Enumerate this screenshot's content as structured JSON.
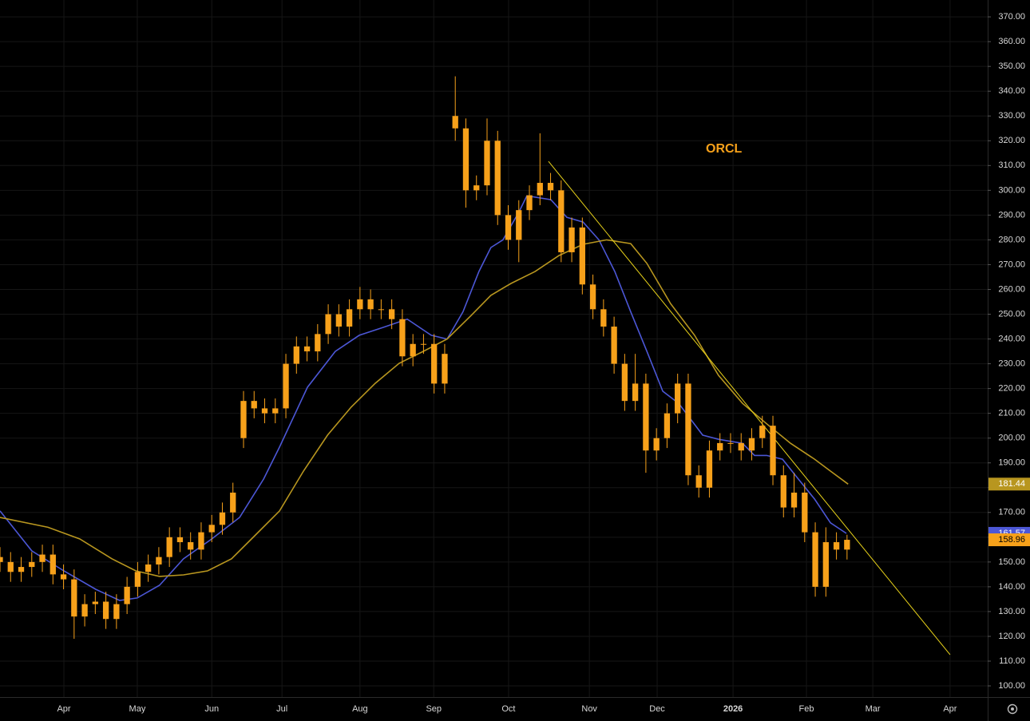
{
  "chart_data": {
    "type": "candlestick",
    "annotation": "ORCL",
    "grid": true,
    "xlim": [
      0,
      279.4
    ],
    "ylim": [
      95.5,
      376.8
    ],
    "xticks": [
      {
        "value": 18.1,
        "label": "Apr"
      },
      {
        "value": 38.9,
        "label": "May"
      },
      {
        "value": 60,
        "label": "Jun"
      },
      {
        "value": 79.9,
        "label": "Jul"
      },
      {
        "value": 102,
        "label": "Aug"
      },
      {
        "value": 122.9,
        "label": "Sep"
      },
      {
        "value": 144.1,
        "label": "Oct"
      },
      {
        "value": 167,
        "label": "Nov"
      },
      {
        "value": 186.2,
        "label": "Dec"
      },
      {
        "value": 207.7,
        "label": "2026"
      },
      {
        "value": 228.5,
        "label": "Feb"
      },
      {
        "value": 247.3,
        "label": "Mar"
      },
      {
        "value": 269.2,
        "label": "Apr"
      }
    ],
    "yticks": [
      {
        "value": 100,
        "label": "100.00"
      },
      {
        "value": 110,
        "label": "110.00"
      },
      {
        "value": 120,
        "label": "120.00"
      },
      {
        "value": 130,
        "label": "130.00"
      },
      {
        "value": 140,
        "label": "140.00"
      },
      {
        "value": 150,
        "label": "150.00"
      },
      {
        "value": 160,
        "label": "160.00"
      },
      {
        "value": 170,
        "label": "170.00"
      },
      {
        "value": 180,
        "label": "180.00"
      },
      {
        "value": 190,
        "label": "190.00"
      },
      {
        "value": 200,
        "label": "200.00"
      },
      {
        "value": 210,
        "label": "210.00"
      },
      {
        "value": 220,
        "label": "220.00"
      },
      {
        "value": 230,
        "label": "230.00"
      },
      {
        "value": 240,
        "label": "240.00"
      },
      {
        "value": 250,
        "label": "250.00"
      },
      {
        "value": 260,
        "label": "260.00"
      },
      {
        "value": 270,
        "label": "270.00"
      },
      {
        "value": 280,
        "label": "280.00"
      },
      {
        "value": 290,
        "label": "290.00"
      },
      {
        "value": 300,
        "label": "300.00"
      },
      {
        "value": 310,
        "label": "310.00"
      },
      {
        "value": 320,
        "label": "320.00"
      },
      {
        "value": 330,
        "label": "330.00"
      },
      {
        "value": 340,
        "label": "340.00"
      },
      {
        "value": 350,
        "label": "350.00"
      },
      {
        "value": 360,
        "label": "360.00"
      },
      {
        "value": 370,
        "label": "370.00"
      }
    ],
    "candles": {
      "color": "#f7a11a",
      "x": [
        0,
        3,
        6,
        9,
        12,
        15,
        18,
        21,
        24,
        27,
        30,
        33,
        36,
        39,
        42,
        45,
        48,
        51,
        54,
        57,
        60,
        63,
        66,
        69,
        72,
        75,
        78,
        81,
        84,
        87,
        90,
        93,
        96,
        99,
        102,
        105,
        108,
        111,
        114,
        117,
        120,
        123,
        126,
        129,
        132,
        135,
        138,
        141,
        144,
        147,
        150,
        153,
        156,
        159,
        162,
        165,
        168,
        171,
        174,
        177,
        180,
        183,
        186,
        189,
        192,
        195,
        198,
        201,
        204,
        207,
        210,
        213,
        216,
        219,
        222,
        225,
        228,
        231,
        234,
        237,
        240
      ],
      "open": [
        152,
        150,
        146,
        148,
        150,
        153,
        145,
        143,
        128,
        133,
        134,
        127,
        133,
        140,
        146,
        149,
        152,
        160,
        158,
        155,
        162,
        165,
        170,
        200,
        215,
        212,
        210,
        212,
        230,
        237,
        235,
        242,
        250,
        245,
        252,
        256,
        252,
        252,
        248,
        233,
        238,
        238,
        222,
        330,
        325,
        300,
        302,
        320,
        290,
        280,
        292,
        298,
        303,
        300,
        275,
        285,
        262,
        252,
        245,
        230,
        215,
        222,
        195,
        200,
        210,
        222,
        185,
        180,
        195,
        198,
        198,
        195,
        200,
        205,
        185,
        172,
        178,
        162,
        140,
        158,
        155
      ],
      "high": [
        156,
        154,
        152,
        154,
        157,
        157,
        149,
        147,
        137,
        138,
        138,
        137,
        144,
        150,
        153,
        156,
        164,
        164,
        162,
        166,
        169,
        174,
        182,
        219,
        219,
        216,
        216,
        234,
        241,
        241,
        246,
        254,
        254,
        256,
        261,
        260,
        256,
        256,
        252,
        242,
        242,
        242,
        238,
        346,
        329,
        306,
        329,
        324,
        294,
        296,
        302,
        323,
        307,
        304,
        289,
        289,
        266,
        256,
        249,
        234,
        234,
        226,
        204,
        214,
        226,
        226,
        189,
        199,
        202,
        202,
        202,
        204,
        209,
        209,
        189,
        186,
        182,
        166,
        164,
        162,
        161
      ],
      "low": [
        146,
        142,
        142,
        144,
        146,
        141,
        139,
        119,
        124,
        129,
        123,
        123,
        129,
        136,
        142,
        145,
        148,
        154,
        151,
        151,
        158,
        161,
        166,
        196,
        208,
        206,
        206,
        208,
        226,
        231,
        231,
        238,
        241,
        241,
        248,
        248,
        248,
        244,
        229,
        229,
        234,
        218,
        218,
        320,
        293,
        296,
        298,
        286,
        276,
        271,
        288,
        294,
        296,
        271,
        271,
        258,
        248,
        241,
        226,
        211,
        211,
        186,
        191,
        196,
        206,
        181,
        176,
        176,
        191,
        194,
        191,
        191,
        196,
        181,
        168,
        168,
        158,
        136,
        136,
        151,
        151
      ],
      "close": [
        150,
        146,
        148,
        150,
        153,
        145,
        143,
        128,
        133,
        134,
        127,
        133,
        140,
        146,
        149,
        152,
        160,
        158,
        155,
        162,
        165,
        170,
        178,
        215,
        212,
        210,
        212,
        230,
        237,
        235,
        242,
        250,
        245,
        252,
        256,
        252,
        252,
        248,
        233,
        238,
        238,
        222,
        234,
        325,
        300,
        302,
        320,
        290,
        280,
        292,
        298,
        303,
        300,
        275,
        285,
        262,
        252,
        245,
        230,
        215,
        222,
        195,
        200,
        210,
        222,
        185,
        180,
        195,
        198,
        198,
        195,
        200,
        205,
        185,
        172,
        178,
        162,
        140,
        158,
        155,
        158.96
      ]
    },
    "series": [
      {
        "color": "#4c57d6",
        "x": [
          0,
          9,
          18.1,
          27.1,
          33.9,
          38.9,
          45.2,
          52,
          60,
          67.9,
          74.7,
          79.2,
          87.1,
          95,
          101.8,
          108.6,
          115.4,
          122.2,
          126.7,
          131.2,
          135.7,
          139.1,
          142.5,
          147.1,
          149.3,
          156.1,
          160.6,
          165.2,
          169.7,
          174.2,
          178.7,
          183.3,
          187.8,
          192.3,
          199.1,
          203.6,
          210.4,
          213.8,
          217.2,
          221.7,
          226.2,
          230.8,
          235.3,
          239.8
        ],
        "values": [
          170.6,
          154.5,
          146.4,
          139,
          134.5,
          135.5,
          140.6,
          151.3,
          159.3,
          168,
          183.5,
          196.4,
          220.5,
          235,
          241.5,
          244.7,
          248,
          241.5,
          240,
          251,
          267.2,
          276.9,
          280,
          291.4,
          297.8,
          296.2,
          289.1,
          287.2,
          280,
          267.2,
          251,
          235,
          218.9,
          214,
          201.2,
          199.5,
          197.9,
          193,
          193,
          191.5,
          183.5,
          175.4,
          165.8,
          161.57
        ]
      },
      {
        "color": "#b8961f",
        "x": [
          0,
          13.6,
          22.6,
          31.7,
          38.5,
          45.2,
          52,
          58.8,
          65.6,
          72.4,
          79.2,
          86,
          92.8,
          99.5,
          106.3,
          113.1,
          119.9,
          126.7,
          133.5,
          139.1,
          144.8,
          151.6,
          158.4,
          165.2,
          171.9,
          178.7,
          183.3,
          190,
          196.8,
          203.6,
          210.4,
          217.2,
          224,
          230.8,
          235.3,
          240.3
        ],
        "values": [
          168,
          164,
          159.3,
          151.3,
          146.4,
          144.2,
          144.8,
          146.4,
          151.3,
          160.9,
          170.6,
          186.7,
          201.2,
          212.5,
          222.1,
          230.2,
          235,
          240,
          249.5,
          257.6,
          262.4,
          267.2,
          273.7,
          278.2,
          280,
          278.5,
          270.5,
          254.3,
          241.5,
          225.3,
          214,
          205.8,
          197.9,
          191.5,
          186.7,
          181.44
        ]
      }
    ],
    "trendline": {
      "color": "#e8d21a",
      "x": [
        155.4,
        269.2
      ],
      "y": [
        311.7,
        112.6
      ]
    }
  }
}
